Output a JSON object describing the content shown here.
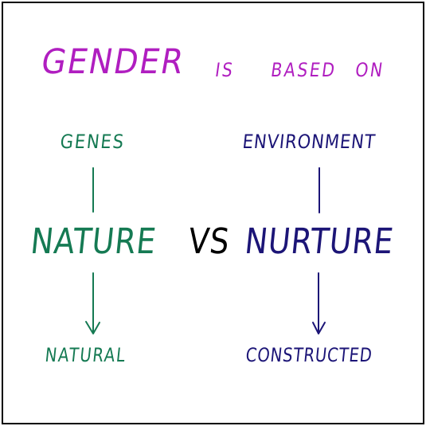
{
  "colors": {
    "purple": "#b01ec0",
    "green": "#157a53",
    "navy": "#1c1577",
    "black": "#000000",
    "border": "#000000"
  },
  "title": {
    "main": "GENDER",
    "is": "IS",
    "based": "BASED",
    "on": "ON"
  },
  "left": {
    "top_label": "GENES",
    "word": "NATURE",
    "bottom_label": "NATURAL"
  },
  "middle": {
    "vs": "VS"
  },
  "right": {
    "top_label": "ENVIRONMENT",
    "word": "NURTURE",
    "bottom_label": "CONSTRUCTED"
  }
}
